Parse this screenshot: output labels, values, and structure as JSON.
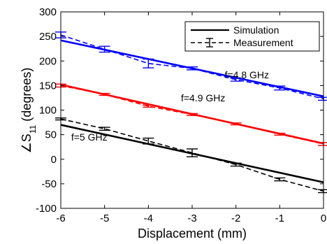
{
  "chart_data": {
    "type": "line",
    "xlabel": "Displacement (mm)",
    "ylabel_main": "∠S",
    "ylabel_sub": "11",
    "ylabel_tail": " (degrees)",
    "xlim": [
      -6,
      0
    ],
    "ylim": [
      -100,
      300
    ],
    "xticks": [
      -6,
      -5,
      -4,
      -3,
      -2,
      -1,
      0
    ],
    "yticks": [
      -100,
      -50,
      0,
      50,
      100,
      150,
      200,
      250,
      300
    ],
    "grid": false,
    "legend": {
      "placement": "top-right",
      "entries": [
        {
          "label": "Simulation",
          "style": "solid"
        },
        {
          "label": "Measurement",
          "style": "dashed-errorbar"
        }
      ]
    },
    "annotations": [
      {
        "text": "f=4.8 GHz",
        "x": -1.75,
        "y": 165
      },
      {
        "text": "f=4.9 GHz",
        "x": -2.75,
        "y": 118
      },
      {
        "text": "f=5 GHz",
        "x": -5.35,
        "y": 38
      }
    ],
    "series": [
      {
        "group": "f=4.8 GHz",
        "color": "#0000ff",
        "x": [
          -6,
          0
        ],
        "simulation": [
          242,
          128
        ],
        "measurement": [
          253,
          224,
          195,
          185,
          162,
          145,
          123
        ],
        "measurement_err": [
          6,
          6,
          9,
          3,
          3,
          4,
          3
        ]
      },
      {
        "group": "f=4.9 GHz",
        "color": "#ff0000",
        "x": [
          -6,
          0
        ],
        "simulation": [
          152,
          32
        ],
        "measurement": [
          150,
          132,
          108,
          91,
          72,
          51,
          31
        ],
        "measurement_err": [
          3,
          2,
          2,
          2,
          2,
          2,
          3
        ]
      },
      {
        "group": "f=5 GHz",
        "color": "#000000",
        "x": [
          -6,
          0
        ],
        "simulation": [
          70,
          -47
        ],
        "measurement": [
          82,
          62,
          37,
          13,
          -11,
          -41,
          -65
        ],
        "measurement_err": [
          2,
          3,
          6,
          8,
          3,
          3,
          3
        ]
      }
    ],
    "measurement_x": [
      -6,
      -5,
      -4,
      -3,
      -2,
      -1,
      0
    ]
  }
}
